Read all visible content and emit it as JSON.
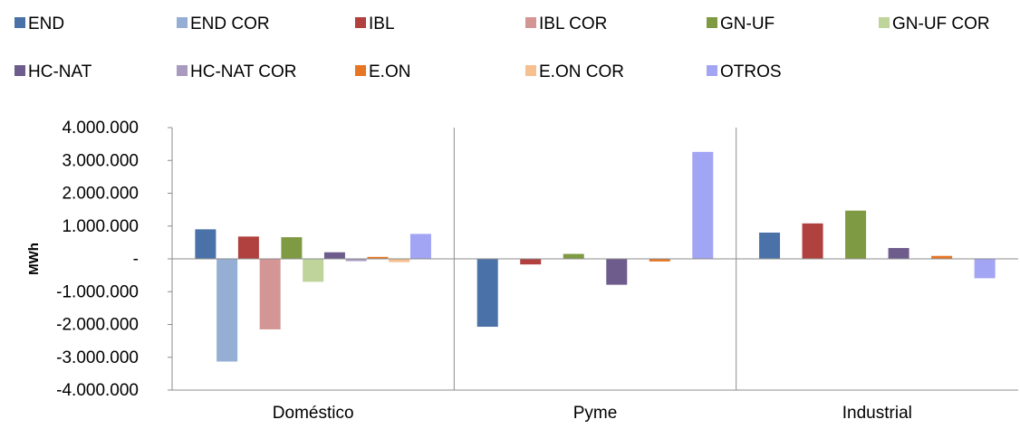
{
  "chart_data": {
    "type": "bar",
    "categories": [
      "Doméstico",
      "Pyme",
      "Industrial"
    ],
    "ylabel": "MWh",
    "ylim": [
      -4000000,
      4000000
    ],
    "yticks": [
      4000000,
      3000000,
      2000000,
      1000000,
      0,
      -1000000,
      -2000000,
      -3000000,
      -4000000
    ],
    "ytick_labels": [
      "4.000.000",
      "3.000.000",
      "2.000.000",
      "1.000.000",
      "-",
      "-1.000.000",
      "-2.000.000",
      "-3.000.000",
      "-4.000.000"
    ],
    "grid": false,
    "legend_position": "top",
    "series": [
      {
        "name": "END",
        "color": "#4A72A8",
        "values": [
          900000,
          -2070000,
          800000
        ]
      },
      {
        "name": "END COR",
        "color": "#95AED4",
        "values": [
          -3130000,
          0,
          0
        ]
      },
      {
        "name": "IBL",
        "color": "#B0413E",
        "values": [
          680000,
          -170000,
          1080000
        ]
      },
      {
        "name": "IBL COR",
        "color": "#D49694",
        "values": [
          -2150000,
          0,
          0
        ]
      },
      {
        "name": "GN-UF",
        "color": "#7E9A42",
        "values": [
          660000,
          150000,
          1470000
        ]
      },
      {
        "name": "GN-UF COR",
        "color": "#BFD49A",
        "values": [
          -700000,
          0,
          0
        ]
      },
      {
        "name": "HC-NAT",
        "color": "#6D5C8C",
        "values": [
          200000,
          -790000,
          330000
        ]
      },
      {
        "name": "HC-NAT COR",
        "color": "#A99BC0",
        "values": [
          -70000,
          0,
          0
        ]
      },
      {
        "name": "E.ON",
        "color": "#E77624",
        "values": [
          60000,
          -80000,
          90000
        ]
      },
      {
        "name": "E.ON COR",
        "color": "#F7C090",
        "values": [
          -100000,
          0,
          0
        ]
      },
      {
        "name": "OTROS",
        "color": "#A2A4F4",
        "values": [
          760000,
          3260000,
          -590000
        ]
      }
    ]
  }
}
